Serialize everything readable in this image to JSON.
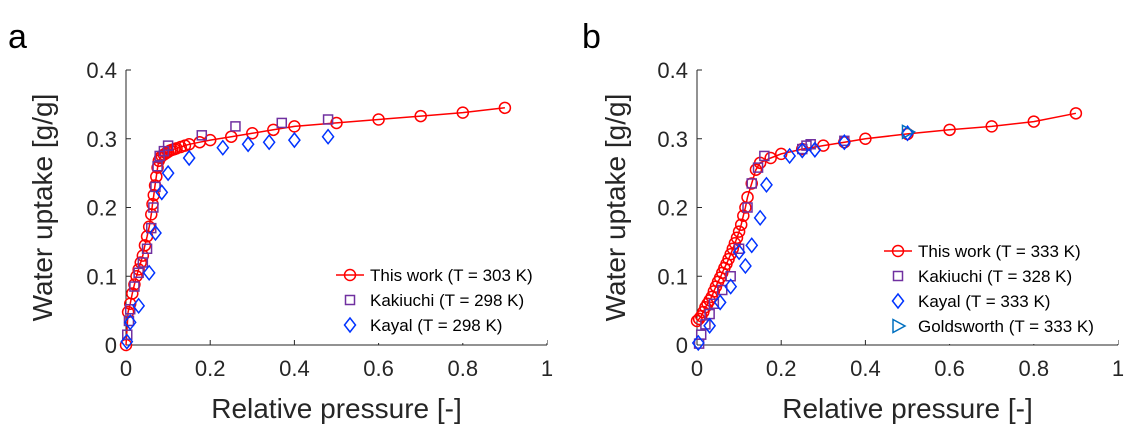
{
  "chart_data": [
    {
      "panel_letter": "a",
      "type": "scatter",
      "xlabel": "Relative pressure [-]",
      "ylabel": "Water uptake [g/g]",
      "xlim": [
        0,
        1
      ],
      "ylim": [
        0,
        0.4
      ],
      "xticks": [
        0,
        0.2,
        0.4,
        0.6,
        0.8,
        1
      ],
      "xtick_labels": [
        "0",
        "0.2",
        "0.4",
        "0.6",
        "0.8",
        "1"
      ],
      "yticks": [
        0,
        0.1,
        0.2,
        0.3,
        0.4
      ],
      "ytick_labels": [
        "0",
        "0.1",
        "0.2",
        "0.3",
        "0.4"
      ],
      "grid": false,
      "legend_position": "bottom-right",
      "series": [
        {
          "name": "This work (T = 303 K)",
          "color": "#ff0000",
          "marker": "circle",
          "line": true,
          "x": [
            0.0,
            0.005,
            0.01,
            0.015,
            0.02,
            0.025,
            0.03,
            0.035,
            0.04,
            0.045,
            0.05,
            0.055,
            0.06,
            0.063,
            0.066,
            0.069,
            0.072,
            0.075,
            0.078,
            0.081,
            0.085,
            0.09,
            0.095,
            0.1,
            0.105,
            0.11,
            0.115,
            0.12,
            0.13,
            0.14,
            0.15,
            0.175,
            0.2,
            0.25,
            0.3,
            0.35,
            0.4,
            0.5,
            0.6,
            0.7,
            0.8,
            0.9
          ],
          "y": [
            0.0,
            0.048,
            0.06,
            0.075,
            0.088,
            0.1,
            0.11,
            0.12,
            0.13,
            0.145,
            0.158,
            0.172,
            0.19,
            0.205,
            0.218,
            0.232,
            0.245,
            0.258,
            0.268,
            0.272,
            0.275,
            0.277,
            0.279,
            0.281,
            0.283,
            0.284,
            0.285,
            0.286,
            0.288,
            0.29,
            0.292,
            0.295,
            0.298,
            0.303,
            0.308,
            0.313,
            0.318,
            0.323,
            0.328,
            0.333,
            0.338,
            0.345
          ]
        },
        {
          "name": "Kakiuchi (T = 298 K)",
          "color": "#7030a0",
          "marker": "square",
          "line": false,
          "x": [
            0.003,
            0.007,
            0.01,
            0.02,
            0.03,
            0.04,
            0.05,
            0.06,
            0.065,
            0.07,
            0.075,
            0.08,
            0.09,
            0.1,
            0.18,
            0.26,
            0.37,
            0.48
          ],
          "y": [
            0.015,
            0.035,
            0.052,
            0.085,
            0.105,
            0.12,
            0.14,
            0.17,
            0.2,
            0.23,
            0.26,
            0.275,
            0.282,
            0.29,
            0.305,
            0.318,
            0.323,
            0.328
          ]
        },
        {
          "name": "Kayal (T = 298 K)",
          "color": "#0033ff",
          "marker": "diamond",
          "line": false,
          "x": [
            0.002,
            0.01,
            0.03,
            0.055,
            0.07,
            0.085,
            0.1,
            0.15,
            0.23,
            0.29,
            0.34,
            0.4,
            0.48
          ],
          "y": [
            0.005,
            0.033,
            0.057,
            0.105,
            0.163,
            0.222,
            0.25,
            0.272,
            0.287,
            0.292,
            0.295,
            0.298,
            0.303
          ]
        }
      ]
    },
    {
      "panel_letter": "b",
      "type": "scatter",
      "xlabel": "Relative pressure [-]",
      "ylabel": "Water uptake [g/g]",
      "xlim": [
        0,
        1
      ],
      "ylim": [
        0,
        0.4
      ],
      "xticks": [
        0,
        0.2,
        0.4,
        0.6,
        0.8,
        1
      ],
      "xtick_labels": [
        "0",
        "0.2",
        "0.4",
        "0.6",
        "0.8",
        "1"
      ],
      "yticks": [
        0,
        0.1,
        0.2,
        0.3,
        0.4
      ],
      "ytick_labels": [
        "0",
        "0.1",
        "0.2",
        "0.3",
        "0.4"
      ],
      "grid": false,
      "legend_position": "bottom-right",
      "series": [
        {
          "name": "This work (T = 333 K)",
          "color": "#ff0000",
          "marker": "circle",
          "line": true,
          "x": [
            0.0,
            0.005,
            0.01,
            0.015,
            0.02,
            0.025,
            0.03,
            0.035,
            0.04,
            0.045,
            0.05,
            0.055,
            0.06,
            0.065,
            0.07,
            0.075,
            0.08,
            0.085,
            0.09,
            0.095,
            0.1,
            0.105,
            0.11,
            0.115,
            0.12,
            0.13,
            0.14,
            0.15,
            0.175,
            0.2,
            0.25,
            0.3,
            0.35,
            0.4,
            0.5,
            0.6,
            0.7,
            0.8,
            0.9
          ],
          "y": [
            0.035,
            0.038,
            0.042,
            0.048,
            0.055,
            0.06,
            0.065,
            0.07,
            0.078,
            0.085,
            0.092,
            0.098,
            0.105,
            0.112,
            0.118,
            0.125,
            0.132,
            0.14,
            0.148,
            0.156,
            0.165,
            0.175,
            0.188,
            0.2,
            0.215,
            0.235,
            0.255,
            0.265,
            0.272,
            0.278,
            0.285,
            0.29,
            0.295,
            0.3,
            0.307,
            0.313,
            0.318,
            0.325,
            0.337
          ]
        },
        {
          "name": "Kakiuchi (T = 328 K)",
          "color": "#7030a0",
          "marker": "square",
          "line": false,
          "x": [
            0.005,
            0.01,
            0.02,
            0.03,
            0.04,
            0.06,
            0.08,
            0.1,
            0.12,
            0.13,
            0.145,
            0.16,
            0.25,
            0.26,
            0.27,
            0.35
          ],
          "y": [
            0.002,
            0.015,
            0.03,
            0.045,
            0.06,
            0.08,
            0.1,
            0.14,
            0.2,
            0.235,
            0.258,
            0.275,
            0.285,
            0.29,
            0.292,
            0.297
          ]
        },
        {
          "name": "Kayal (T = 333 K)",
          "color": "#0033ff",
          "marker": "diamond",
          "line": false,
          "x": [
            0.003,
            0.03,
            0.055,
            0.08,
            0.1,
            0.115,
            0.13,
            0.15,
            0.165,
            0.22,
            0.25,
            0.28,
            0.35,
            0.5
          ],
          "y": [
            0.003,
            0.028,
            0.062,
            0.085,
            0.135,
            0.115,
            0.145,
            0.185,
            0.233,
            0.275,
            0.283,
            0.284,
            0.295,
            0.308
          ]
        },
        {
          "name": "Goldsworth (T = 333 K)",
          "color": "#0070c0",
          "marker": "triangle-right",
          "line": false,
          "x": [
            0.5
          ],
          "y": [
            0.31
          ]
        }
      ]
    }
  ]
}
